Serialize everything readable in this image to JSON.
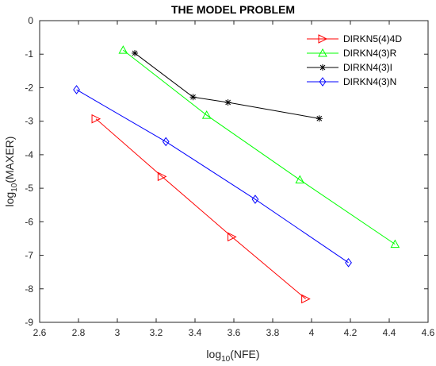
{
  "chart_data": {
    "type": "line",
    "title": "THE MODEL PROBLEM",
    "xlabel": {
      "base": "log",
      "sub": "10",
      "rest": "(NFE)"
    },
    "ylabel": {
      "base": "log",
      "sub": "10",
      "rest": "(MAXER)"
    },
    "xlim": [
      2.6,
      4.6
    ],
    "ylim": [
      -9,
      0
    ],
    "xticks": [
      2.6,
      2.8,
      3,
      3.2,
      3.4,
      3.6,
      3.8,
      4,
      4.2,
      4.4,
      4.6
    ],
    "xtick_labels": [
      "2.6",
      "2.8",
      "3",
      "3.2",
      "3.4",
      "3.6",
      "3.8",
      "4",
      "4.2",
      "4.4",
      "4.6"
    ],
    "yticks": [
      0,
      -1,
      -2,
      -3,
      -4,
      -5,
      -6,
      -7,
      -8,
      -9
    ],
    "ytick_labels": [
      "0",
      "-1",
      "-2",
      "-3",
      "-4",
      "-5",
      "-6",
      "-7",
      "-8",
      "-9"
    ],
    "grid": false,
    "legend_position": "top-right",
    "series": [
      {
        "name": "DIRKN5(4)4D",
        "color": "#ff0000",
        "marker": "triangle-right",
        "x": [
          2.89,
          3.23,
          3.59,
          3.97
        ],
        "y": [
          -2.93,
          -4.65,
          -6.45,
          -8.3
        ]
      },
      {
        "name": "DIRKN4(3)R",
        "color": "#00ff00",
        "marker": "triangle-up",
        "x": [
          3.03,
          3.46,
          3.94,
          4.43
        ],
        "y": [
          -0.88,
          -2.82,
          -4.75,
          -6.67
        ]
      },
      {
        "name": "DIRKN4(3)I",
        "color": "#000000",
        "marker": "asterisk",
        "x": [
          3.09,
          3.39,
          3.57,
          4.04
        ],
        "y": [
          -0.97,
          -2.28,
          -2.44,
          -2.92
        ]
      },
      {
        "name": "DIRKN4(3)N",
        "color": "#0000ff",
        "marker": "diamond",
        "x": [
          2.79,
          3.25,
          3.71,
          4.19
        ],
        "y": [
          -2.06,
          -3.61,
          -5.33,
          -7.22
        ]
      }
    ]
  }
}
